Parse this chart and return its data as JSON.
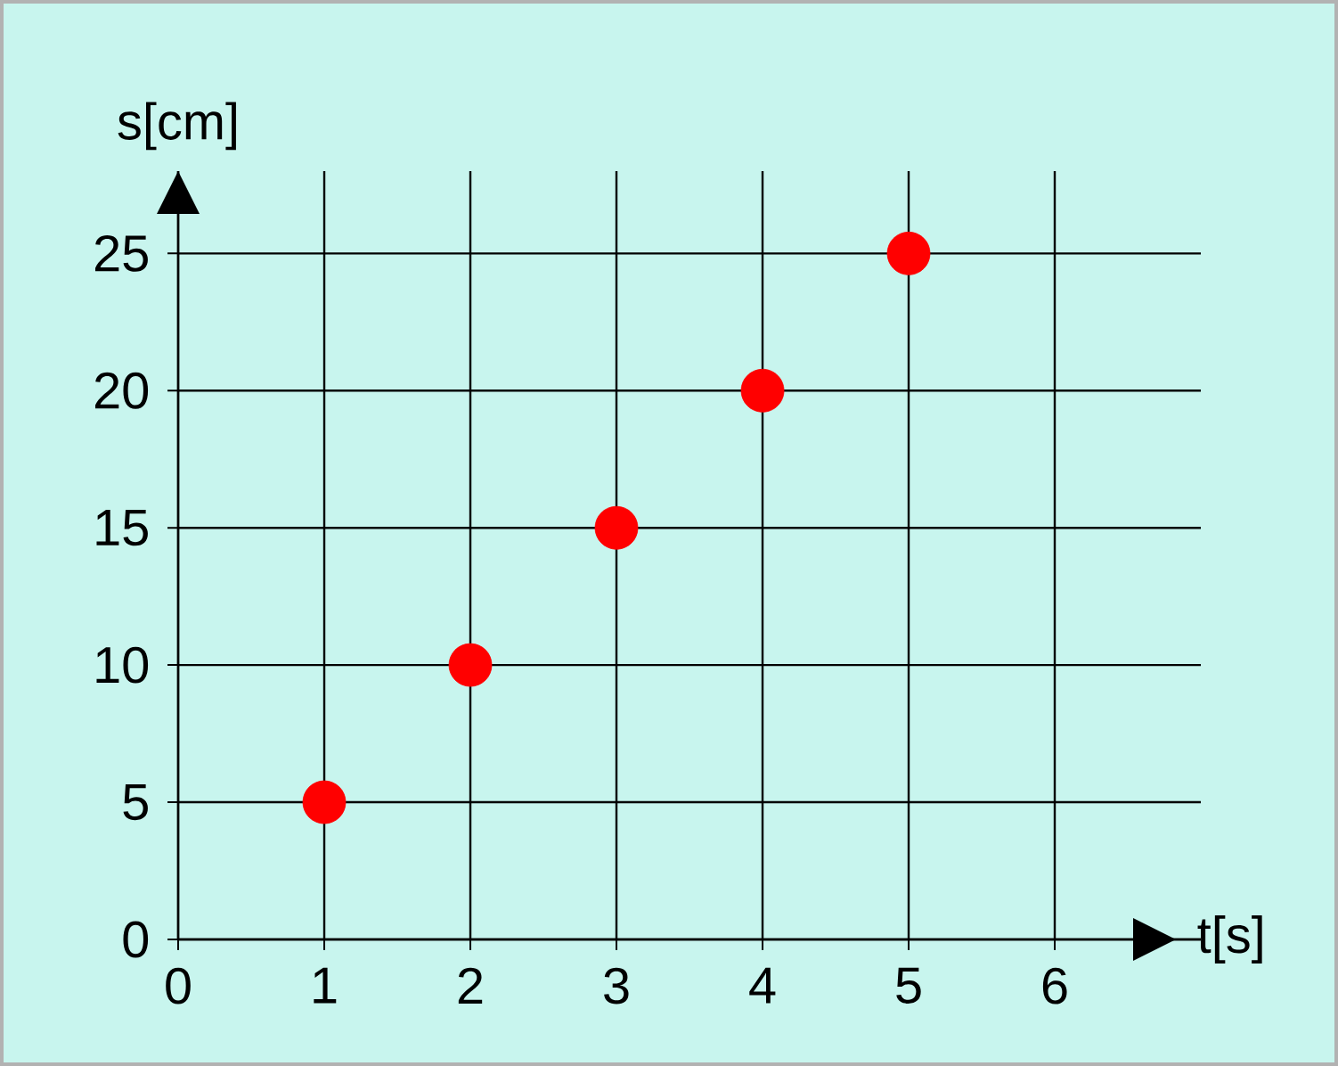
{
  "chart_data": {
    "type": "scatter",
    "xlabel": "t[s]",
    "ylabel": "s[cm]",
    "x": [
      1,
      2,
      3,
      4,
      5
    ],
    "values": [
      5,
      10,
      15,
      20,
      25
    ],
    "color": "#ff0000",
    "marker": "circle",
    "xlim": [
      0,
      7
    ],
    "ylim": [
      0,
      28
    ],
    "xticks": [
      0,
      1,
      2,
      3,
      4,
      5,
      6
    ],
    "yticks": [
      0,
      5,
      10,
      15,
      20,
      25
    ],
    "grid": true
  }
}
